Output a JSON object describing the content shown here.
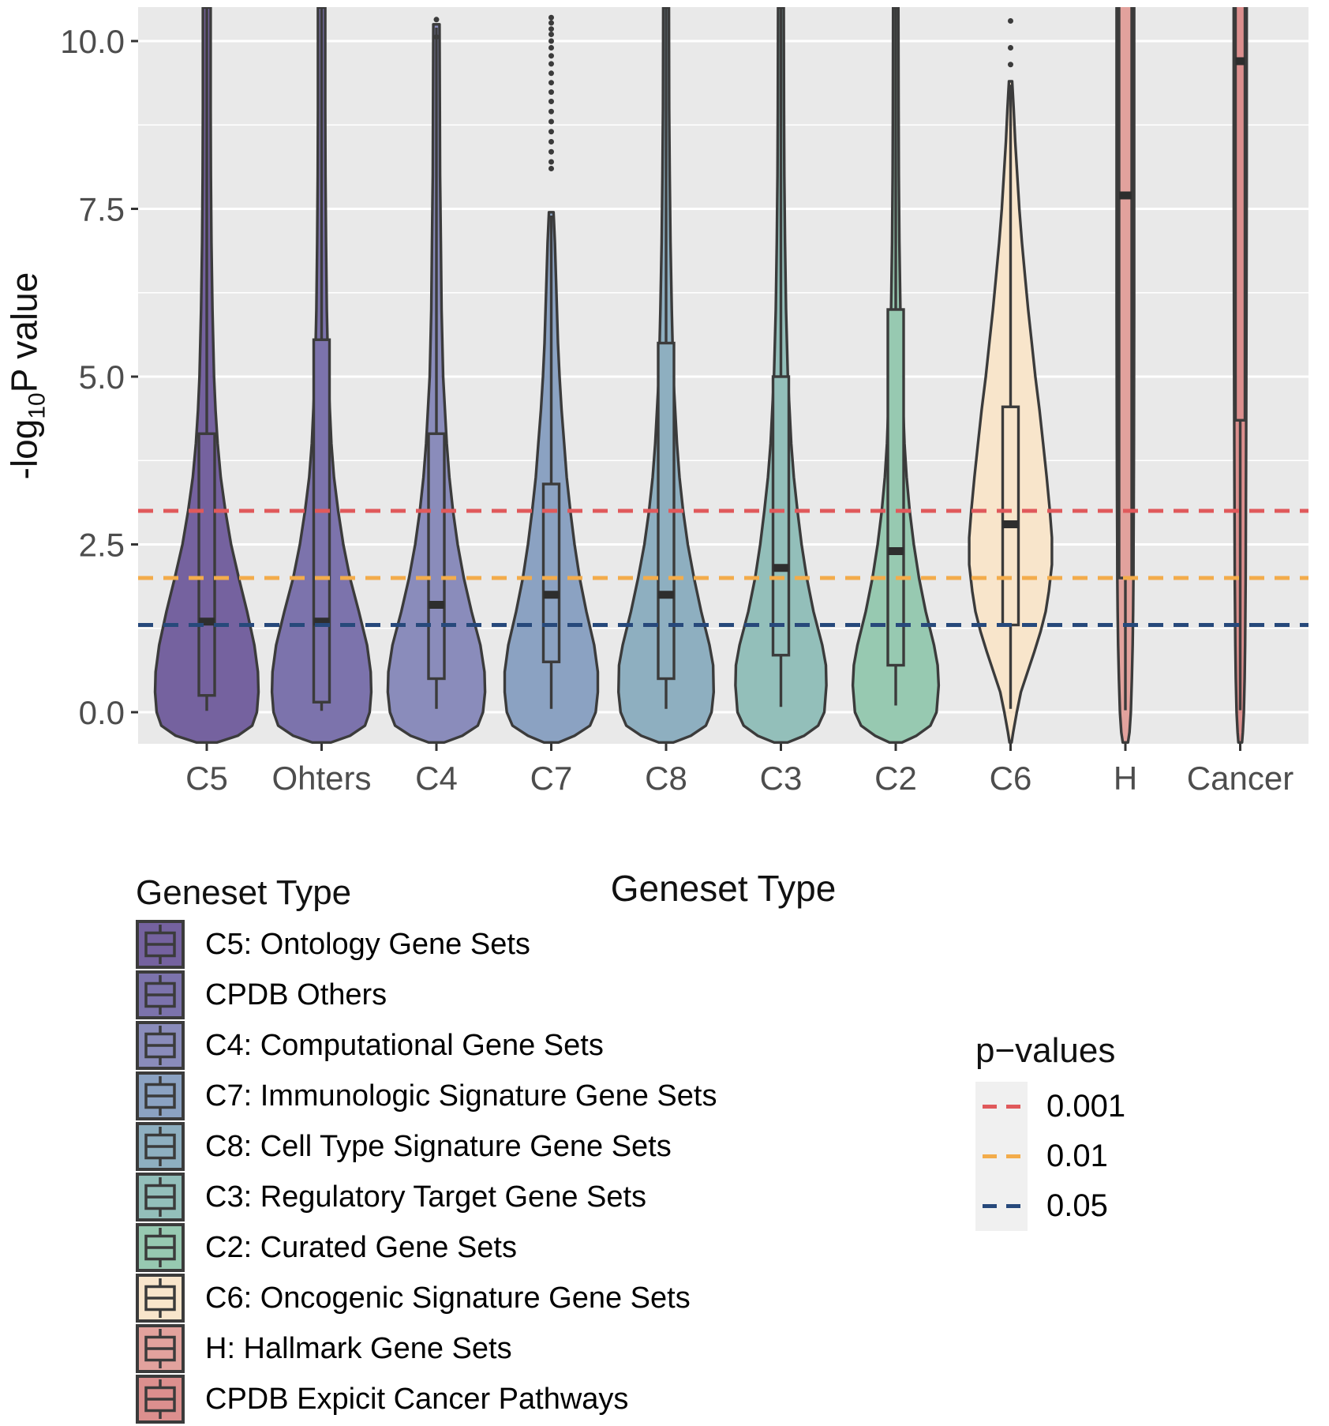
{
  "figure": {
    "y_axis": {
      "title_prefix": "-log",
      "title_sub": "10",
      "title_suffix": "P value",
      "ticks": [
        {
          "label": "10.0",
          "value": 10.0
        },
        {
          "label": "7.5",
          "value": 7.5
        },
        {
          "label": "5.0",
          "value": 5.0
        },
        {
          "label": "2.5",
          "value": 2.5
        },
        {
          "label": "0.0",
          "value": 0.0
        }
      ],
      "minor_gridlines": [
        1.25,
        3.75,
        6.25,
        8.75
      ]
    },
    "x_axis": {
      "title": "Geneset Type",
      "categories": [
        "C5",
        "Ohters",
        "C4",
        "C7",
        "C8",
        "C3",
        "C2",
        "C6",
        "H",
        "Cancer"
      ]
    }
  },
  "chart_data": {
    "type": "violin",
    "title": "",
    "xlabel": "Geneset Type",
    "ylabel": "-log10 P value",
    "ylim": [
      -0.47,
      10.5
    ],
    "grid": "on",
    "legend_position": "bottom-left",
    "reference_lines": [
      {
        "label": "0.001",
        "value": 3.0,
        "color": "#E0595B",
        "style": "dashed"
      },
      {
        "label": "0.01",
        "value": 2.0,
        "color": "#F3AC4B",
        "style": "dashed"
      },
      {
        "label": "0.05",
        "value": 1.3,
        "color": "#27497B",
        "style": "dashed"
      }
    ],
    "series": [
      {
        "name": "C5",
        "color": "#75629F",
        "box": {
          "q1": 0.25,
          "median": 1.35,
          "q3": 4.15,
          "whisker_low": 0.02,
          "whisker_high": 10.6
        },
        "box_halfwidth": 10,
        "clipped_top": true,
        "outliers": [],
        "profile": [
          [
            10.5,
            0.075
          ],
          [
            9,
            0.075
          ],
          [
            8,
            0.08
          ],
          [
            7,
            0.09
          ],
          [
            6,
            0.11
          ],
          [
            5,
            0.14
          ],
          [
            4.5,
            0.17
          ],
          [
            4,
            0.21
          ],
          [
            3.5,
            0.27
          ],
          [
            3,
            0.36
          ],
          [
            2.5,
            0.47
          ],
          [
            2,
            0.62
          ],
          [
            1.5,
            0.78
          ],
          [
            1,
            0.92
          ],
          [
            0.6,
            0.99
          ],
          [
            0.3,
            1.0
          ],
          [
            0,
            0.97
          ],
          [
            -0.2,
            0.88
          ],
          [
            -0.35,
            0.6
          ],
          [
            -0.45,
            0.2
          ]
        ]
      },
      {
        "name": "Ohters",
        "color": "#7C73AC",
        "box": {
          "q1": 0.15,
          "median": 1.35,
          "q3": 5.55,
          "whisker_low": 0.02,
          "whisker_high": 10.6
        },
        "box_halfwidth": 10,
        "clipped_top": true,
        "outliers": [],
        "profile": [
          [
            10.5,
            0.07
          ],
          [
            9,
            0.07
          ],
          [
            8,
            0.075
          ],
          [
            7,
            0.085
          ],
          [
            6,
            0.1
          ],
          [
            5,
            0.13
          ],
          [
            4,
            0.19
          ],
          [
            3.5,
            0.24
          ],
          [
            3,
            0.32
          ],
          [
            2.5,
            0.42
          ],
          [
            2,
            0.55
          ],
          [
            1.5,
            0.72
          ],
          [
            1,
            0.88
          ],
          [
            0.6,
            0.95
          ],
          [
            0.3,
            0.96
          ],
          [
            0,
            0.93
          ],
          [
            -0.2,
            0.84
          ],
          [
            -0.35,
            0.55
          ],
          [
            -0.45,
            0.18
          ]
        ]
      },
      {
        "name": "C4",
        "color": "#8A8CBB",
        "box": {
          "q1": 0.5,
          "median": 1.6,
          "q3": 4.15,
          "whisker_low": 0.05,
          "whisker_high": 10.2
        },
        "box_halfwidth": 10,
        "clipped_top": false,
        "outliers": [
          10.32,
          10.06
        ],
        "profile": [
          [
            10.25,
            0.06
          ],
          [
            9,
            0.065
          ],
          [
            8,
            0.07
          ],
          [
            7,
            0.085
          ],
          [
            6,
            0.1
          ],
          [
            5,
            0.13
          ],
          [
            4,
            0.2
          ],
          [
            3.5,
            0.25
          ],
          [
            3,
            0.32
          ],
          [
            2.5,
            0.41
          ],
          [
            2,
            0.53
          ],
          [
            1.5,
            0.68
          ],
          [
            1,
            0.85
          ],
          [
            0.6,
            0.93
          ],
          [
            0.3,
            0.94
          ],
          [
            0,
            0.9
          ],
          [
            -0.2,
            0.8
          ],
          [
            -0.35,
            0.5
          ],
          [
            -0.45,
            0.15
          ]
        ]
      },
      {
        "name": "C7",
        "color": "#8BA2C2",
        "box": {
          "q1": 0.75,
          "median": 1.75,
          "q3": 3.4,
          "whisker_low": 0.05,
          "whisker_high": 7.4
        },
        "box_halfwidth": 10,
        "clipped_top": false,
        "outliers": [
          10.35,
          10.27,
          10.18,
          10.1,
          10.0,
          9.9,
          9.78,
          9.66,
          9.52,
          9.38,
          9.24,
          9.1,
          8.95,
          8.8,
          8.65,
          8.5,
          8.35,
          8.2,
          8.1
        ],
        "profile": [
          [
            7.45,
            0.045
          ],
          [
            7,
            0.07
          ],
          [
            6.5,
            0.09
          ],
          [
            6,
            0.11
          ],
          [
            5.5,
            0.13
          ],
          [
            5,
            0.16
          ],
          [
            4.5,
            0.2
          ],
          [
            4,
            0.25
          ],
          [
            3.5,
            0.3
          ],
          [
            3,
            0.37
          ],
          [
            2.5,
            0.45
          ],
          [
            2,
            0.55
          ],
          [
            1.5,
            0.68
          ],
          [
            1,
            0.83
          ],
          [
            0.6,
            0.9
          ],
          [
            0.3,
            0.9
          ],
          [
            0,
            0.86
          ],
          [
            -0.2,
            0.75
          ],
          [
            -0.35,
            0.45
          ],
          [
            -0.45,
            0.14
          ]
        ]
      },
      {
        "name": "C8",
        "color": "#8EAFC0",
        "box": {
          "q1": 0.5,
          "median": 1.75,
          "q3": 5.5,
          "whisker_low": 0.05,
          "whisker_high": 10.6
        },
        "box_halfwidth": 10,
        "clipped_top": true,
        "outliers": [],
        "profile": [
          [
            10.5,
            0.055
          ],
          [
            9,
            0.06
          ],
          [
            8,
            0.07
          ],
          [
            7,
            0.085
          ],
          [
            6,
            0.11
          ],
          [
            5,
            0.14
          ],
          [
            4,
            0.21
          ],
          [
            3.5,
            0.26
          ],
          [
            3,
            0.33
          ],
          [
            2.5,
            0.42
          ],
          [
            2,
            0.54
          ],
          [
            1.5,
            0.68
          ],
          [
            1,
            0.84
          ],
          [
            0.7,
            0.91
          ],
          [
            0.3,
            0.92
          ],
          [
            0,
            0.88
          ],
          [
            -0.2,
            0.77
          ],
          [
            -0.35,
            0.48
          ],
          [
            -0.45,
            0.14
          ]
        ]
      },
      {
        "name": "C3",
        "color": "#93BFBA",
        "box": {
          "q1": 0.85,
          "median": 2.15,
          "q3": 5.0,
          "whisker_low": 0.08,
          "whisker_high": 10.6
        },
        "box_halfwidth": 10,
        "clipped_top": true,
        "outliers": [],
        "profile": [
          [
            10.5,
            0.055
          ],
          [
            9,
            0.06
          ],
          [
            8,
            0.065
          ],
          [
            7,
            0.08
          ],
          [
            6,
            0.1
          ],
          [
            5,
            0.135
          ],
          [
            4,
            0.2
          ],
          [
            3.5,
            0.25
          ],
          [
            3,
            0.32
          ],
          [
            2.5,
            0.4
          ],
          [
            2,
            0.5
          ],
          [
            1.5,
            0.63
          ],
          [
            1,
            0.8
          ],
          [
            0.7,
            0.87
          ],
          [
            0.4,
            0.88
          ],
          [
            0,
            0.84
          ],
          [
            -0.2,
            0.72
          ],
          [
            -0.35,
            0.45
          ],
          [
            -0.45,
            0.13
          ]
        ]
      },
      {
        "name": "C2",
        "color": "#97C9B1",
        "box": {
          "q1": 0.7,
          "median": 2.4,
          "q3": 6.0,
          "whisker_low": 0.1,
          "whisker_high": 10.6
        },
        "box_halfwidth": 10,
        "clipped_top": true,
        "outliers": [],
        "profile": [
          [
            10.5,
            0.05
          ],
          [
            9,
            0.055
          ],
          [
            8,
            0.06
          ],
          [
            7,
            0.07
          ],
          [
            6,
            0.09
          ],
          [
            5,
            0.12
          ],
          [
            4,
            0.17
          ],
          [
            3.5,
            0.21
          ],
          [
            3,
            0.27
          ],
          [
            2.5,
            0.35
          ],
          [
            2,
            0.45
          ],
          [
            1.5,
            0.58
          ],
          [
            1,
            0.74
          ],
          [
            0.7,
            0.81
          ],
          [
            0.4,
            0.83
          ],
          [
            0,
            0.79
          ],
          [
            -0.2,
            0.67
          ],
          [
            -0.35,
            0.4
          ],
          [
            -0.45,
            0.12
          ]
        ]
      },
      {
        "name": "C6",
        "color": "#F8E5CB",
        "box": {
          "q1": 1.3,
          "median": 2.8,
          "q3": 4.55,
          "whisker_low": 0.05,
          "whisker_high": 9.35
        },
        "box_halfwidth": 10,
        "clipped_top": false,
        "outliers": [
          10.3,
          9.9,
          9.65
        ],
        "profile": [
          [
            9.4,
            0.03
          ],
          [
            9,
            0.06
          ],
          [
            8.5,
            0.09
          ],
          [
            8,
            0.13
          ],
          [
            7.5,
            0.17
          ],
          [
            7,
            0.22
          ],
          [
            6.5,
            0.28
          ],
          [
            6,
            0.34
          ],
          [
            5.5,
            0.41
          ],
          [
            5,
            0.48
          ],
          [
            4.5,
            0.56
          ],
          [
            4,
            0.63
          ],
          [
            3.5,
            0.7
          ],
          [
            3,
            0.76
          ],
          [
            2.6,
            0.8
          ],
          [
            2.2,
            0.8
          ],
          [
            1.8,
            0.74
          ],
          [
            1.5,
            0.68
          ],
          [
            1.2,
            0.58
          ],
          [
            0.9,
            0.46
          ],
          [
            0.6,
            0.33
          ],
          [
            0.3,
            0.2
          ],
          [
            0,
            0.12
          ],
          [
            -0.3,
            0.05
          ],
          [
            -0.45,
            0.02
          ]
        ]
      },
      {
        "name": "H",
        "color": "#E2A29D",
        "box": {
          "q1": 2.0,
          "median": 7.7,
          "q3": 10.6,
          "whisker_low": 0.03,
          "whisker_high": null
        },
        "box_halfwidth": 8,
        "clipped_top": true,
        "outliers": [],
        "profile": [
          [
            10.5,
            0.17
          ],
          [
            8,
            0.17
          ],
          [
            6,
            0.17
          ],
          [
            4,
            0.165
          ],
          [
            3,
            0.16
          ],
          [
            2.5,
            0.158
          ],
          [
            2,
            0.155
          ],
          [
            1.5,
            0.15
          ],
          [
            1,
            0.14
          ],
          [
            0.5,
            0.125
          ],
          [
            0,
            0.105
          ],
          [
            -0.3,
            0.08
          ],
          [
            -0.45,
            0.05
          ]
        ]
      },
      {
        "name": "Cancer",
        "color": "#DC8F8E",
        "box": {
          "q1": 4.35,
          "median": 9.7,
          "q3": 10.6,
          "whisker_low": 0.03,
          "whisker_high": null
        },
        "box_halfwidth": 6,
        "clipped_top": true,
        "outliers": [],
        "profile": [
          [
            10.5,
            0.125
          ],
          [
            8,
            0.125
          ],
          [
            6,
            0.12
          ],
          [
            4,
            0.115
          ],
          [
            3,
            0.11
          ],
          [
            2,
            0.105
          ],
          [
            1,
            0.095
          ],
          [
            0.5,
            0.085
          ],
          [
            0,
            0.07
          ],
          [
            -0.3,
            0.05
          ],
          [
            -0.45,
            0.035
          ]
        ]
      }
    ]
  },
  "legend": {
    "title": "Geneset Type",
    "entries": [
      {
        "label": "C5: Ontology Gene Sets"
      },
      {
        "label": "CPDB Others"
      },
      {
        "label": "C4: Computational Gene Sets"
      },
      {
        "label": "C7: Immunologic Signature Gene Sets"
      },
      {
        "label": "C8: Cell Type Signature Gene Sets"
      },
      {
        "label": "C3: Regulatory Target Gene Sets"
      },
      {
        "label": "C2: Curated Gene Sets"
      },
      {
        "label": "C6: Oncogenic Signature Gene Sets"
      },
      {
        "label": "H: Hallmark Gene Sets"
      },
      {
        "label": "CPDB Expicit Cancer Pathways"
      }
    ]
  },
  "pvalues_legend": {
    "title": "p−values",
    "entries": [
      {
        "label": "0.001"
      },
      {
        "label": "0.01"
      },
      {
        "label": "0.05"
      }
    ]
  },
  "colors": {
    "panel_bg": "#E9E9E9",
    "gridline": "#FFFFFF",
    "outline": "#3B3B3B",
    "median": "#2E2E2E",
    "tick_text": "#4D4D4D",
    "tick_mark": "#333333",
    "title_text": "#111111",
    "key_bg": "#F0F0F0"
  }
}
